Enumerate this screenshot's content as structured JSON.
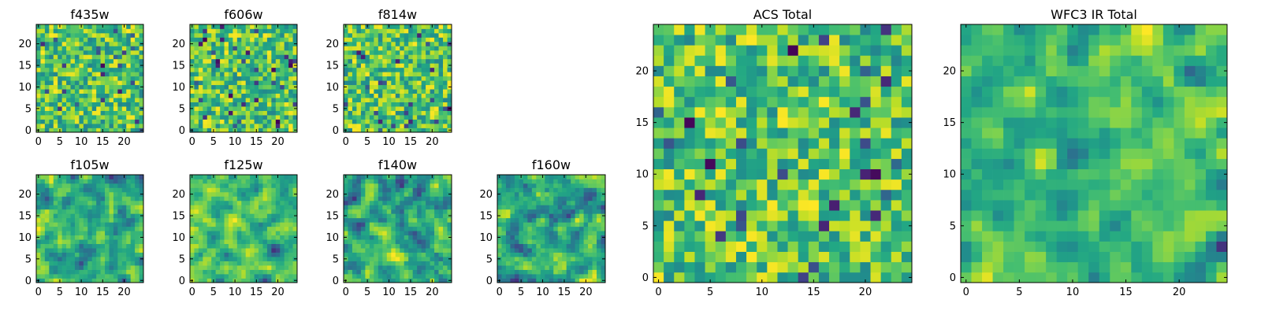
{
  "figure": {
    "seed": 4217,
    "colormap": "viridis",
    "colorbar": "none"
  },
  "chart_data": [
    {
      "type": "heatmap",
      "title": "f435w",
      "grid": [
        25,
        25
      ],
      "xlim": [
        -0.5,
        24.5
      ],
      "ylim": [
        -0.5,
        24.5
      ],
      "xticks": [
        0,
        5,
        10,
        15,
        20
      ],
      "yticks": [
        0,
        5,
        10,
        15,
        20
      ],
      "texture": "pixel noise",
      "smoothing": 0,
      "noise_seed": 11
    },
    {
      "type": "heatmap",
      "title": "f606w",
      "grid": [
        25,
        25
      ],
      "xlim": [
        -0.5,
        24.5
      ],
      "ylim": [
        -0.5,
        24.5
      ],
      "xticks": [
        0,
        5,
        10,
        15,
        20
      ],
      "yticks": [
        0,
        5,
        10,
        15,
        20
      ],
      "texture": "pixel noise",
      "smoothing": 0,
      "noise_seed": 22
    },
    {
      "type": "heatmap",
      "title": "f814w",
      "grid": [
        25,
        25
      ],
      "xlim": [
        -0.5,
        24.5
      ],
      "ylim": [
        -0.5,
        24.5
      ],
      "xticks": [
        0,
        5,
        10,
        15,
        20
      ],
      "yticks": [
        0,
        5,
        10,
        15,
        20
      ],
      "texture": "pixel noise",
      "smoothing": 0,
      "noise_seed": 33
    },
    {
      "type": "heatmap",
      "title": "f105w",
      "grid": [
        25,
        25
      ],
      "xlim": [
        -0.5,
        24.5
      ],
      "ylim": [
        -0.5,
        24.5
      ],
      "xticks": [
        0,
        5,
        10,
        15,
        20
      ],
      "yticks": [
        0,
        5,
        10,
        15,
        20
      ],
      "texture": "smooth noise",
      "smoothing": 1,
      "noise_seed": 44
    },
    {
      "type": "heatmap",
      "title": "f125w",
      "grid": [
        25,
        25
      ],
      "xlim": [
        -0.5,
        24.5
      ],
      "ylim": [
        -0.5,
        24.5
      ],
      "xticks": [
        0,
        5,
        10,
        15,
        20
      ],
      "yticks": [
        0,
        5,
        10,
        15,
        20
      ],
      "texture": "smooth noise",
      "smoothing": 1,
      "noise_seed": 55
    },
    {
      "type": "heatmap",
      "title": "f140w",
      "grid": [
        25,
        25
      ],
      "xlim": [
        -0.5,
        24.5
      ],
      "ylim": [
        -0.5,
        24.5
      ],
      "xticks": [
        0,
        5,
        10,
        15,
        20
      ],
      "yticks": [
        0,
        5,
        10,
        15,
        20
      ],
      "texture": "smooth noise",
      "smoothing": 1,
      "noise_seed": 66
    },
    {
      "type": "heatmap",
      "title": "f160w",
      "grid": [
        25,
        25
      ],
      "xlim": [
        -0.5,
        24.5
      ],
      "ylim": [
        -0.5,
        24.5
      ],
      "xticks": [
        0,
        5,
        10,
        15,
        20
      ],
      "yticks": [
        0,
        5,
        10,
        15,
        20
      ],
      "texture": "smooth noise",
      "smoothing": 1,
      "noise_seed": 77
    },
    {
      "type": "heatmap",
      "title": "ACS Total",
      "grid": [
        25,
        25
      ],
      "xlim": [
        -0.5,
        24.5
      ],
      "ylim": [
        -0.5,
        24.5
      ],
      "xticks": [
        0,
        5,
        10,
        15,
        20
      ],
      "yticks": [
        0,
        5,
        10,
        15,
        20
      ],
      "texture": "pixel noise",
      "smoothing": 0,
      "noise_seed": 88
    },
    {
      "type": "heatmap",
      "title": "WFC3 IR Total",
      "grid": [
        25,
        25
      ],
      "xlim": [
        -0.5,
        24.5
      ],
      "ylim": [
        -0.5,
        24.5
      ],
      "xticks": [
        0,
        5,
        10,
        15,
        20
      ],
      "yticks": [
        0,
        5,
        10,
        15,
        20
      ],
      "texture": "smooth noise",
      "smoothing": 1,
      "noise_seed": 99
    }
  ]
}
